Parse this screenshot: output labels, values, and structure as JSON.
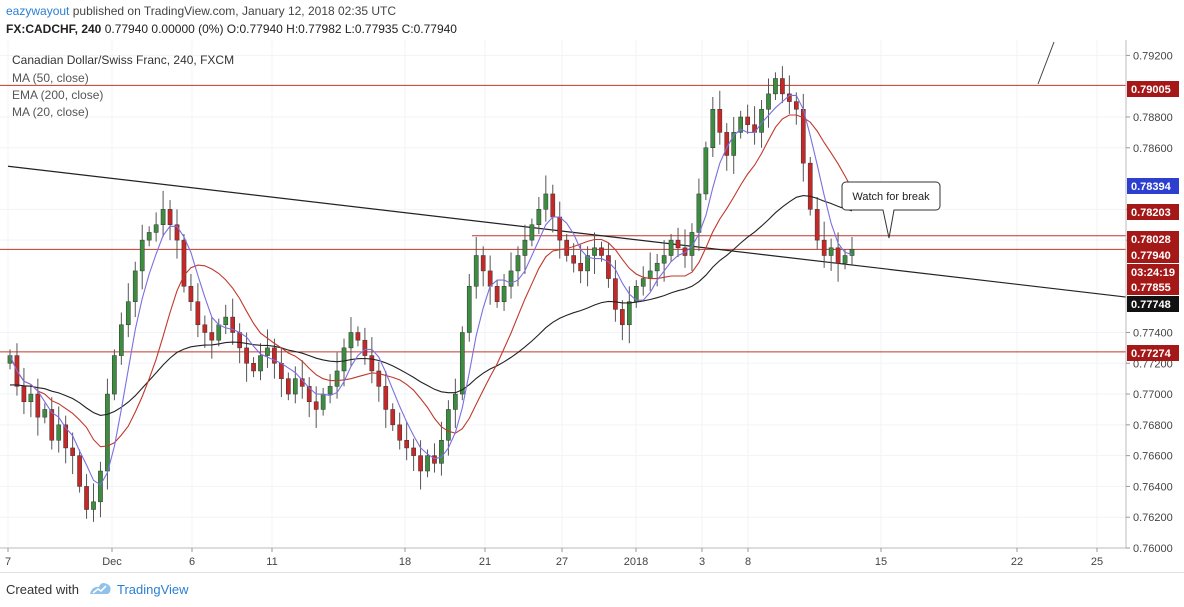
{
  "header": {
    "user": "eazywayout",
    "published": "published on TradingView.com, January 12, 2018 02:35 UTC",
    "symbol": "FX:CADCHF, 240",
    "ohlc": "0.77940 0.00000 (0%) O:0.77940 H:0.77982 L:0.77935 C:0.77940"
  },
  "footer": {
    "created_with": "Created with",
    "brand": "TradingView"
  },
  "chart_data": {
    "type": "candlestick",
    "title": "Canadian Dollar/Swiss Franc, 240, FXCM",
    "indicators": [
      "MA (50, close)",
      "EMA (200, close)",
      "MA (20, close)"
    ],
    "y_range": [
      0.76,
      0.793
    ],
    "y_ticks": [
      "0.79200",
      "0.78800",
      "0.78600",
      "0.78200",
      "0.78000",
      "0.77400",
      "0.77200",
      "0.77000",
      "0.76800",
      "0.76600",
      "0.76400",
      "0.76200",
      "0.76000"
    ],
    "x_ticks": [
      "7",
      "Dec",
      "6",
      "11",
      "18",
      "21",
      "27",
      "2018",
      "3",
      "8",
      "15",
      "22",
      "25"
    ],
    "price_tags": [
      {
        "label": "0.79005",
        "kind": "level"
      },
      {
        "label": "0.78394",
        "kind": "ma20"
      },
      {
        "label": "0.78203",
        "kind": "level"
      },
      {
        "label": "0.78028",
        "kind": "level"
      },
      {
        "label": "0.77940",
        "kind": "last"
      },
      {
        "label": "03:24:19",
        "kind": "countdown"
      },
      {
        "label": "0.77855",
        "kind": "level"
      },
      {
        "label": "0.77748",
        "kind": "ema200"
      },
      {
        "label": "0.77274",
        "kind": "level"
      }
    ],
    "horizontal_levels": [
      0.79005,
      0.78028,
      0.7794,
      0.77274
    ],
    "trendline": {
      "from": 0.7848,
      "to": 0.7763
    },
    "annotation": "Watch for break",
    "closes": [
      0.7725,
      0.7705,
      0.7695,
      0.77,
      0.7685,
      0.769,
      0.767,
      0.768,
      0.7665,
      0.766,
      0.764,
      0.7625,
      0.763,
      0.765,
      0.77,
      0.7725,
      0.7745,
      0.776,
      0.778,
      0.78,
      0.7805,
      0.781,
      0.782,
      0.781,
      0.78,
      0.777,
      0.776,
      0.7745,
      0.774,
      0.7735,
      0.7745,
      0.775,
      0.774,
      0.773,
      0.772,
      0.7715,
      0.7725,
      0.773,
      0.772,
      0.771,
      0.77,
      0.771,
      0.7705,
      0.7695,
      0.769,
      0.77,
      0.7705,
      0.7715,
      0.773,
      0.774,
      0.7735,
      0.7725,
      0.7715,
      0.7705,
      0.769,
      0.768,
      0.767,
      0.7665,
      0.766,
      0.765,
      0.766,
      0.7655,
      0.767,
      0.769,
      0.77,
      0.774,
      0.777,
      0.779,
      0.778,
      0.777,
      0.776,
      0.777,
      0.778,
      0.779,
      0.78,
      0.781,
      0.782,
      0.783,
      0.7815,
      0.78,
      0.779,
      0.7785,
      0.778,
      0.779,
      0.7795,
      0.779,
      0.7775,
      0.7755,
      0.7745,
      0.776,
      0.777,
      0.7775,
      0.778,
      0.7785,
      0.779,
      0.78,
      0.7795,
      0.779,
      0.7805,
      0.783,
      0.786,
      0.7885,
      0.787,
      0.7855,
      0.787,
      0.788,
      0.7875,
      0.787,
      0.7885,
      0.7895,
      0.7905,
      0.7895,
      0.789,
      0.7885,
      0.785,
      0.782,
      0.78,
      0.779,
      0.7795,
      0.7785,
      0.779,
      0.7794
    ]
  }
}
